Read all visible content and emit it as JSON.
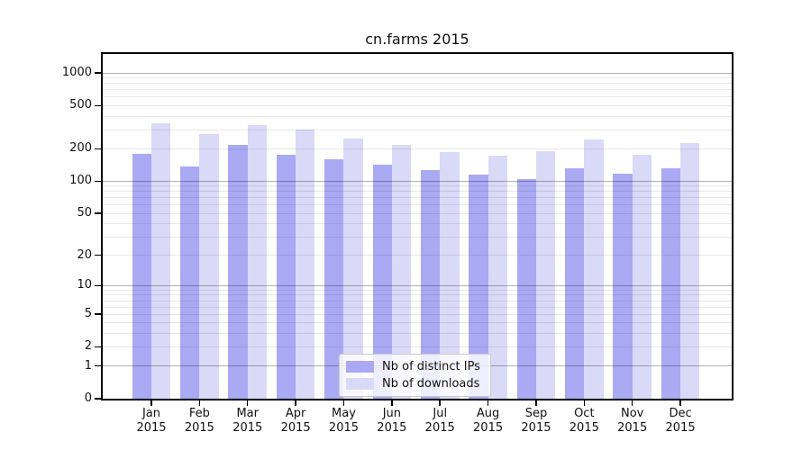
{
  "title": "cn.farms 2015",
  "chart_data": {
    "type": "bar",
    "title": "cn.farms 2015",
    "categories": [
      "Jan 2015",
      "Feb 2015",
      "Mar 2015",
      "Apr 2015",
      "May 2015",
      "Jun 2015",
      "Jul 2015",
      "Aug 2015",
      "Sep 2015",
      "Oct 2015",
      "Nov 2015",
      "Dec 2015"
    ],
    "series": [
      {
        "name": "Nb of distinct IPs",
        "color": "#a9a9f4",
        "values": [
          179,
          137,
          216,
          177,
          160,
          143,
          128,
          116,
          104,
          131,
          118,
          131
        ]
      },
      {
        "name": "Nb of downloads",
        "color": "#d9d9f8",
        "values": [
          345,
          273,
          330,
          300,
          248,
          217,
          185,
          171,
          190,
          244,
          175,
          224
        ]
      }
    ],
    "y_scale": "log10(value+1)",
    "ylim": [
      0,
      1500
    ],
    "yticks": [
      0,
      1,
      2,
      5,
      10,
      20,
      50,
      100,
      200,
      500,
      1000
    ],
    "yticks_minor": [
      2,
      3,
      4,
      5,
      6,
      7,
      8,
      9,
      20,
      30,
      40,
      50,
      60,
      70,
      80,
      90,
      200,
      300,
      400,
      500,
      600,
      700,
      800,
      900
    ],
    "grid": true,
    "legend_position": "lower center",
    "xlabel": "",
    "ylabel": ""
  },
  "colors": {
    "bar_ips": "#a9a9f4",
    "bar_downloads": "#d9d9f8",
    "grid_major": "#b0b0b0",
    "grid_minor": "#e7e7e7",
    "frame": "#000000",
    "background": "#ffffff",
    "text": "#111111",
    "legend_border": "#cccccc"
  }
}
